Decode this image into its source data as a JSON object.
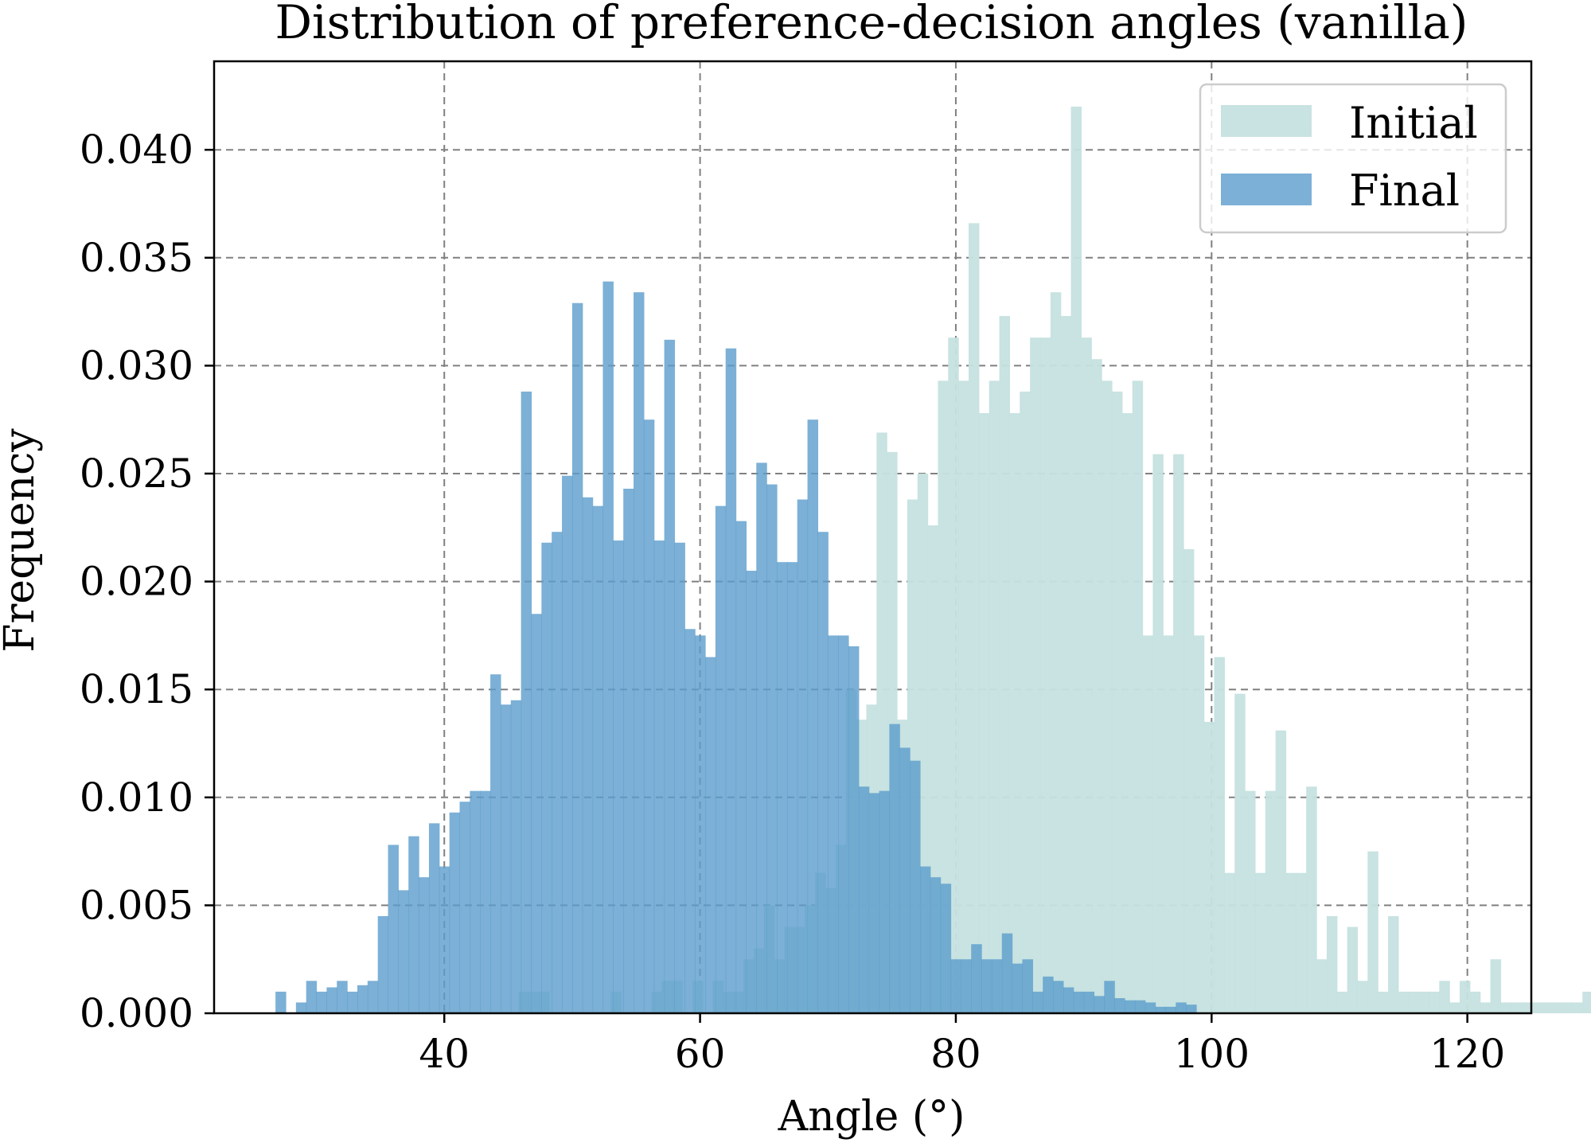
{
  "chart_data": {
    "type": "bar",
    "title": "Distribution of preference-decision angles (vanilla)",
    "xlabel": "Angle (°)",
    "ylabel": "Frequency",
    "xlim": [
      22,
      125
    ],
    "ylim": [
      0,
      0.0441
    ],
    "xticks": [
      40,
      60,
      80,
      100,
      120
    ],
    "yticks": [
      0.0,
      0.005,
      0.01,
      0.015,
      0.02,
      0.025,
      0.03,
      0.035,
      0.04
    ],
    "ytick_labels": [
      "0.000",
      "0.005",
      "0.010",
      "0.015",
      "0.020",
      "0.025",
      "0.030",
      "0.035",
      "0.040"
    ],
    "grid": true,
    "legend_position": "top-right",
    "bin_width": 0.8,
    "series": [
      {
        "name": "Initial",
        "color": "#c5e2df",
        "opacity": 0.95,
        "x_start": 45.8,
        "values": [
          0.001,
          0.001,
          0.001,
          0,
          0,
          0,
          0,
          0,
          0,
          0.001,
          0,
          0,
          0,
          0.001,
          0.0015,
          0.0015,
          0,
          0.0015,
          0,
          0.0015,
          0.001,
          0.001,
          0.0025,
          0.003,
          0.005,
          0.0025,
          0.004,
          0.004,
          0.005,
          0.0065,
          0.0058,
          0.0078,
          0.015,
          0.0136,
          0.0143,
          0.0269,
          0.026,
          0.0136,
          0.0238,
          0.025,
          0.0226,
          0.0293,
          0.0313,
          0.0293,
          0.0366,
          0.0278,
          0.0293,
          0.0323,
          0.0278,
          0.0288,
          0.0313,
          0.0313,
          0.0334,
          0.0323,
          0.042,
          0.0313,
          0.0303,
          0.0293,
          0.0288,
          0.0278,
          0.0293,
          0.0175,
          0.0259,
          0.0175,
          0.0259,
          0.0215,
          0.0175,
          0.0135,
          0.0165,
          0.0065,
          0.0148,
          0.0103,
          0.0065,
          0.0103,
          0.0131,
          0.0065,
          0.0065,
          0.0105,
          0.0025,
          0.0045,
          0.001,
          0.004,
          0.0015,
          0.0075,
          0.001,
          0.0045,
          0.001,
          0.001,
          0.001,
          0.001,
          0.0015,
          0.0005,
          0.0015,
          0.001,
          0.0005,
          0.0025,
          0.0005,
          0.0005,
          0.0005,
          0.0005,
          0.0005,
          0.0005,
          0.0005,
          0.0005,
          0.001
        ]
      },
      {
        "name": "Final",
        "color": "#5b9ccc",
        "opacity": 0.8,
        "x_start": 26.8,
        "values": [
          0.001,
          0,
          0.0005,
          0.0015,
          0.001,
          0.0012,
          0.0015,
          0.001,
          0.0013,
          0.0015,
          0.0045,
          0.0078,
          0.0057,
          0.0082,
          0.0063,
          0.0088,
          0.0068,
          0.0093,
          0.0098,
          0.0103,
          0.0103,
          0.0157,
          0.0143,
          0.0145,
          0.0288,
          0.0185,
          0.0218,
          0.0223,
          0.0249,
          0.0329,
          0.0239,
          0.0235,
          0.0339,
          0.0219,
          0.0243,
          0.0334,
          0.0275,
          0.0219,
          0.0312,
          0.0218,
          0.0178,
          0.0175,
          0.0165,
          0.0235,
          0.0308,
          0.0228,
          0.0205,
          0.0255,
          0.0245,
          0.0209,
          0.0209,
          0.0238,
          0.0275,
          0.0223,
          0.0175,
          0.0175,
          0.017,
          0.0105,
          0.0102,
          0.0103,
          0.0134,
          0.0123,
          0.0117,
          0.0068,
          0.0063,
          0.006,
          0.0025,
          0.0025,
          0.0032,
          0.0025,
          0.0025,
          0.0037,
          0.0023,
          0.0025,
          0.001,
          0.0017,
          0.0015,
          0.0012,
          0.001,
          0.001,
          0.0008,
          0.0015,
          0.0007,
          0.0006,
          0.0006,
          0.0005,
          0.0003,
          0.0003,
          0.0005,
          0.0004
        ]
      }
    ]
  }
}
